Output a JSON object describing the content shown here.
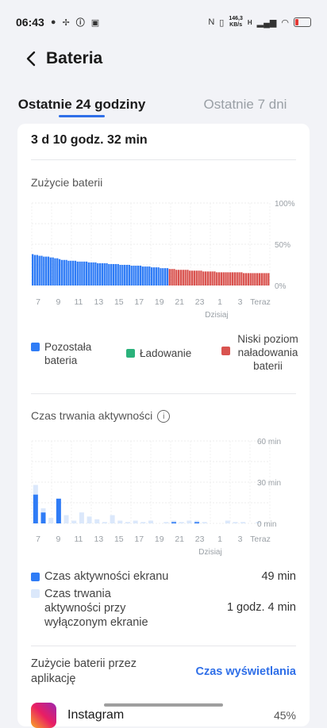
{
  "status_bar": {
    "time": "06:43",
    "speed_value": "146,3",
    "speed_unit": "KB/s",
    "net_type": "H"
  },
  "header": {
    "title": "Bateria"
  },
  "tabs": [
    {
      "label": "Ostatnie 24 godziny",
      "active": true
    },
    {
      "label": "Ostatnie 7 dni",
      "active": false
    }
  ],
  "summary": {
    "duration": "3 d 10 godz. 32 min"
  },
  "usage_section": {
    "title": "Zużycie baterii"
  },
  "legend_battery": [
    {
      "label": "Pozostała bateria",
      "color": "#2f7cf6"
    },
    {
      "label": "Ładowanie",
      "color": "#2ab27b"
    },
    {
      "label": "Niski poziom naładowania baterii",
      "color": "#d9534f"
    }
  ],
  "activity_section": {
    "title": "Czas trwania aktywności"
  },
  "activity_rows": [
    {
      "label": "Czas aktywności ekranu",
      "value": "49 min",
      "color": "#2f7cf6"
    },
    {
      "label": "Czas trwania aktywności przy wyłączonym ekranie",
      "value": "1 godz. 4 min",
      "color": "#dbe8fb"
    }
  ],
  "apps_section": {
    "title": "Zużycie baterii przez aplikację",
    "link": "Czas wyświetlania"
  },
  "apps": [
    {
      "name": "Instagram",
      "percent": "45%",
      "icon": "instagram-icon"
    }
  ],
  "chart_data": [
    {
      "type": "bar",
      "title": "Zużycie baterii",
      "x_tick_labels": [
        "7",
        "9",
        "11",
        "13",
        "15",
        "17",
        "19",
        "21",
        "23",
        "1",
        "3",
        "Teraz"
      ],
      "x_sublabel": "Dzisiaj",
      "y_tick_labels": [
        "100%",
        "50%",
        "0%"
      ],
      "ylim": [
        0,
        100
      ],
      "low_battery_threshold": 20,
      "colors": {
        "normal": "#2f7cf6",
        "low": "#d9534f"
      },
      "values": [
        38,
        37,
        37,
        36,
        36,
        35,
        35,
        35,
        34,
        34,
        33,
        33,
        32,
        31,
        31,
        31,
        30,
        30,
        30,
        30,
        29,
        29,
        29,
        29,
        29,
        28,
        28,
        28,
        28,
        27,
        27,
        27,
        27,
        27,
        26,
        26,
        26,
        26,
        26,
        25,
        25,
        25,
        25,
        25,
        24,
        24,
        24,
        24,
        24,
        23,
        23,
        23,
        23,
        22,
        22,
        22,
        22,
        21,
        21,
        21,
        21,
        20,
        20,
        20,
        19,
        19,
        19,
        19,
        19,
        19,
        18,
        18,
        18,
        18,
        18,
        18,
        17,
        17,
        17,
        17,
        17,
        17,
        16,
        16,
        16,
        16,
        16,
        16,
        16,
        16,
        16,
        16,
        16,
        16,
        15,
        15,
        15,
        15,
        15,
        15,
        15,
        15,
        15,
        15,
        15,
        15
      ]
    },
    {
      "type": "bar",
      "title": "Czas trwania aktywności",
      "x_tick_labels": [
        "7",
        "9",
        "11",
        "13",
        "15",
        "17",
        "19",
        "21",
        "23",
        "1",
        "3",
        "Teraz"
      ],
      "x_sublabel": "Dzisiaj",
      "y_tick_labels": [
        "60 min",
        "30 min",
        "0 min"
      ],
      "ylim": [
        0,
        60
      ],
      "series": [
        {
          "name": "Czas aktywności ekranu",
          "values": [
            21,
            8,
            0,
            18,
            0,
            0,
            0,
            0,
            0,
            0,
            0,
            0,
            0,
            0,
            0,
            0,
            0,
            0,
            1,
            0,
            0,
            1,
            0,
            0,
            0,
            0,
            0,
            0,
            0,
            0,
            0
          ]
        },
        {
          "name": "Czas trwania aktywności przy wyłączonym ekranie",
          "values": [
            7,
            3,
            4,
            0,
            6,
            2,
            8,
            5,
            3,
            1,
            6,
            2,
            1,
            2,
            1,
            2,
            0,
            1,
            1,
            1,
            2,
            1,
            1,
            0,
            0,
            2,
            1,
            1,
            0,
            1,
            0
          ]
        }
      ]
    }
  ]
}
